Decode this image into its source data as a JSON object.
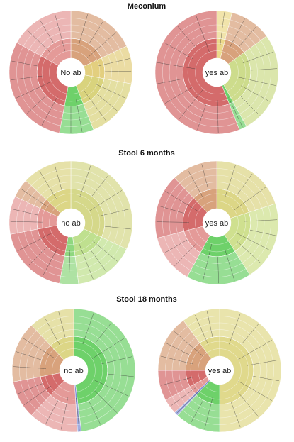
{
  "chart_data": {
    "type": "sunburst",
    "sections": [
      {
        "title": "Meconium",
        "charts": [
          {
            "center_label": "No ab",
            "segments": [
              {
                "color": "#d8a27c",
                "value": 18
              },
              {
                "color": "#e3cf7f",
                "value": 10
              },
              {
                "color": "#d9d37d",
                "value": 16
              },
              {
                "color": "#6ed16a",
                "value": 9
              },
              {
                "color": "#d46b6b",
                "value": 30
              },
              {
                "color": "#e49a98",
                "value": 17
              }
            ]
          },
          {
            "center_label": "yes ab",
            "segments": [
              {
                "color": "#ecd98a",
                "value": 4
              },
              {
                "color": "#d8a27c",
                "value": 11
              },
              {
                "color": "#cddc8c",
                "value": 27
              },
              {
                "color": "#6ed16a",
                "value": 2
              },
              {
                "color": "#d46b6b",
                "value": 56
              }
            ]
          }
        ]
      },
      {
        "title": "Stool 6 months",
        "charts": [
          {
            "center_label": "no ab",
            "segments": [
              {
                "color": "#d5d88a",
                "value": 32
              },
              {
                "color": "#bfe08f",
                "value": 16
              },
              {
                "color": "#8fd77f",
                "value": 5
              },
              {
                "color": "#d46b6b",
                "value": 19
              },
              {
                "color": "#e49a98",
                "value": 10
              },
              {
                "color": "#d8a27c",
                "value": 5
              },
              {
                "color": "#dcd686",
                "value": 13
              }
            ]
          },
          {
            "center_label": "yes ab",
            "segments": [
              {
                "color": "#dcd686",
                "value": 20
              },
              {
                "color": "#cfe08f",
                "value": 21
              },
              {
                "color": "#6ed16a",
                "value": 17
              },
              {
                "color": "#e49a98",
                "value": 13
              },
              {
                "color": "#d46b6b",
                "value": 17
              },
              {
                "color": "#d8a27c",
                "value": 12
              }
            ]
          }
        ]
      },
      {
        "title": "Stool 18 months",
        "charts": [
          {
            "center_label": "no ab",
            "segments": [
              {
                "color": "#6ed16a",
                "value": 48
              },
              {
                "color": "#7f8fd6",
                "value": 1
              },
              {
                "color": "#e49a98",
                "value": 13
              },
              {
                "color": "#d46b6b",
                "value": 10
              },
              {
                "color": "#d8a27c",
                "value": 16
              },
              {
                "color": "#dcd686",
                "value": 12
              }
            ]
          },
          {
            "center_label": "yes ab",
            "segments": [
              {
                "color": "#e0d98c",
                "value": 50
              },
              {
                "color": "#6ed16a",
                "value": 12
              },
              {
                "color": "#7f8fd6",
                "value": 1
              },
              {
                "color": "#e49a98",
                "value": 4
              },
              {
                "color": "#d46b6b",
                "value": 8
              },
              {
                "color": "#d8a27c",
                "value": 15
              },
              {
                "color": "#e0d98c",
                "value": 10
              }
            ]
          }
        ]
      }
    ]
  }
}
